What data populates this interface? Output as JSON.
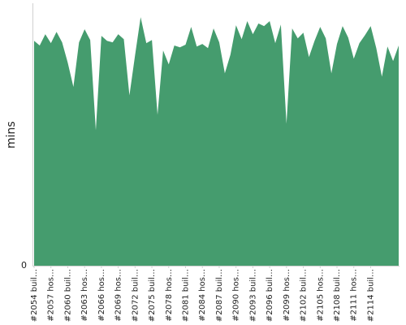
{
  "chart_data": {
    "type": "area",
    "ylabel": "mins",
    "ylim": [
      0,
      100
    ],
    "y_ticks": [
      0
    ],
    "y_tick_labels": [
      "0"
    ],
    "color": "#459c6e",
    "x_tick_labels": [
      "#2054 buil…",
      "#2057 hos…",
      "#2060 buil…",
      "#2063 hos…",
      "#2066 hos…",
      "#2069 hos…",
      "#2072 buil…",
      "#2075 buil…",
      "#2078 hos…",
      "#2081 buil…",
      "#2084 hos…",
      "#2087 buil…",
      "#2090 hos…",
      "#2093 buil…",
      "#2096 buil…",
      "#2099 hos…",
      "#2102 buil…",
      "#2105 hos…",
      "#2108 buil…",
      "#2111 hos…",
      "#2114 buil…"
    ],
    "tick_every": 3,
    "values": [
      85.7,
      83.9,
      88.2,
      84.8,
      89.1,
      85.1,
      77.4,
      68.1,
      85.1,
      90.1,
      86.0,
      51.6,
      87.6,
      85.7,
      85.1,
      88.2,
      86.3,
      64.9,
      80.1,
      94.7,
      84.8,
      86.0,
      57.5,
      82.0,
      76.7,
      83.9,
      83.2,
      84.2,
      91.0,
      83.5,
      84.5,
      82.9,
      90.4,
      85.1,
      73.3,
      80.4,
      91.6,
      86.3,
      93.2,
      88.2,
      92.3,
      91.3,
      93.2,
      84.8,
      91.9,
      54.1,
      90.4,
      86.6,
      88.8,
      79.5,
      85.7,
      91.0,
      86.6,
      73.3,
      84.5,
      91.3,
      86.9,
      78.9,
      84.8,
      87.9,
      91.3,
      82.9,
      72.0,
      83.5,
      78.0,
      83.9
    ]
  }
}
